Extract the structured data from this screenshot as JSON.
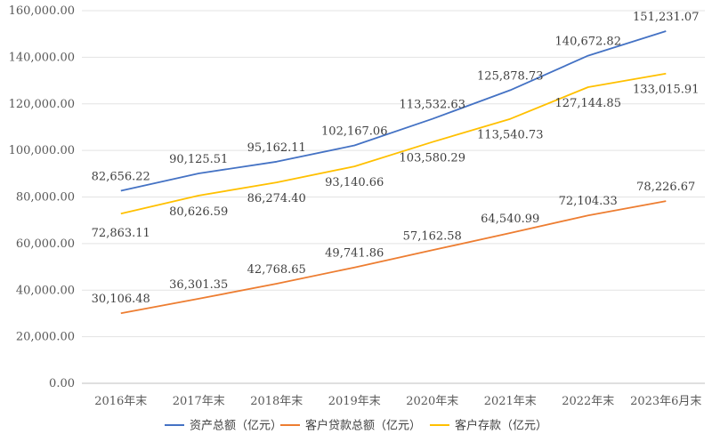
{
  "chart_data": {
    "type": "line",
    "title": "",
    "xlabel": "",
    "ylabel": "",
    "categories": [
      "2016年末",
      "2017年末",
      "2018年末",
      "2019年末",
      "2020年末",
      "2021年末",
      "2022年末",
      "2023年6月末"
    ],
    "ylim": [
      0,
      160000
    ],
    "yticks": [
      "0.00",
      "20,000.00",
      "40,000.00",
      "60,000.00",
      "80,000.00",
      "100,000.00",
      "120,000.00",
      "140,000.00",
      "160,000.00"
    ],
    "grid": true,
    "legend_position": "bottom",
    "series": [
      {
        "name": "资产总额（亿元）",
        "color": "#4472c4",
        "values": [
          82656.22,
          90125.51,
          95162.11,
          102167.06,
          113532.63,
          125878.73,
          140672.82,
          151231.07
        ],
        "labels": [
          "82,656.22",
          "90,125.51",
          "95,162.11",
          "102,167.06",
          "113,532.63",
          "125,878.73",
          "140,672.82",
          "151,231.07"
        ]
      },
      {
        "name": "客户贷款总额（亿元）",
        "color": "#ed7d31",
        "values": [
          30106.48,
          36301.35,
          42768.65,
          49741.86,
          57162.58,
          64540.99,
          72104.33,
          78226.67
        ],
        "labels": [
          "30,106.48",
          "36,301.35",
          "42,768.65",
          "49,741.86",
          "57,162.58",
          "64,540.99",
          "72,104.33",
          "78,226.67"
        ]
      },
      {
        "name": "客户存款（亿元）",
        "color": "#ffc000",
        "values": [
          72863.11,
          80626.59,
          86274.4,
          93140.66,
          103580.29,
          113540.73,
          127144.85,
          133015.91
        ],
        "labels": [
          "72,863.11",
          "80,626.59",
          "86,274.40",
          "93,140.66",
          "103,580.29",
          "113,540.73",
          "127,144.85",
          "133,015.91"
        ]
      }
    ]
  }
}
